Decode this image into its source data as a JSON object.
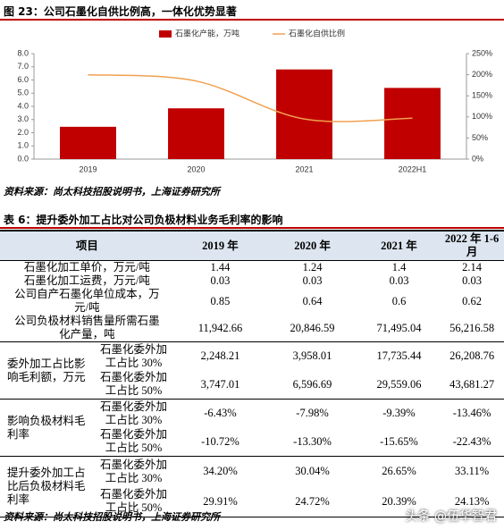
{
  "chart_data": {
    "type": "bar_line",
    "title": "图 23：公司石墨化自供比例高，一体化优势显著",
    "categories": [
      "2019",
      "2020",
      "2021",
      "2022H1"
    ],
    "series": [
      {
        "name": "石墨化产能，万吨",
        "color": "#c00000",
        "values": [
          2.45,
          3.85,
          6.8,
          5.4
        ]
      },
      {
        "name": "石墨化自供比例",
        "color": "#f0a050",
        "values": [
          200,
          185,
          95,
          97
        ],
        "axis": "y2"
      }
    ],
    "ylim": [
      0,
      8
    ],
    "yticks": [
      {
        "value": 0,
        "label": "0.0"
      },
      {
        "value": 1,
        "label": "1.0"
      },
      {
        "value": 2,
        "label": "2.0"
      },
      {
        "value": 3,
        "label": "3.0"
      },
      {
        "value": 4,
        "label": "4.0"
      },
      {
        "value": 5,
        "label": "5.0"
      },
      {
        "value": 6,
        "label": "6.0"
      },
      {
        "value": 7,
        "label": "7.0"
      },
      {
        "value": 8,
        "label": "8.0"
      }
    ],
    "y2lim": [
      0,
      250
    ],
    "y2ticks": [
      {
        "value": 0,
        "label": "0%"
      },
      {
        "value": 50,
        "label": "50%"
      },
      {
        "value": 100,
        "label": "100%"
      },
      {
        "value": 150,
        "label": "150%"
      },
      {
        "value": 200,
        "label": "200%"
      },
      {
        "value": 250,
        "label": "250%"
      }
    ],
    "source": "资料来源：尚太科技招股说明书，上海证券研究所"
  },
  "table": {
    "title": "表 6：提升委外加工占比对公司负极材料业务毛利率的影响",
    "header": [
      "项目",
      "2019 年",
      "2020 年",
      "2021 年",
      "2022 年 1-6 月"
    ],
    "rows": [
      {
        "label": "石墨化加工单价，万元/吨",
        "values": [
          "1.44",
          "1.24",
          "1.4",
          "2.14"
        ]
      },
      {
        "label": "石墨化加工运费，万元/吨",
        "values": [
          "0.03",
          "0.03",
          "0.03",
          "0.03"
        ]
      },
      {
        "label": "公司自产石墨化单位成本，万元/吨",
        "values": [
          "0.85",
          "0.64",
          "0.6",
          "0.62"
        ]
      },
      {
        "label": "公司负极材料销售量所需石墨化产量，吨",
        "values": [
          "11,942.66",
          "20,846.59",
          "71,495.04",
          "56,216.58"
        ]
      }
    ],
    "groups": [
      {
        "label": "委外加工占比影响毛利额，万元",
        "sub": [
          {
            "label": "石墨化委外加工占比 30%",
            "values": [
              "2,248.21",
              "3,958.01",
              "17,735.44",
              "26,208.76"
            ]
          },
          {
            "label": "石墨化委外加工占比 50%",
            "values": [
              "3,747.01",
              "6,596.69",
              "29,559.06",
              "43,681.27"
            ]
          }
        ]
      },
      {
        "label": "影响负极材料毛利率",
        "sub": [
          {
            "label": "石墨化委外加工占比 30%",
            "values": [
              "-6.43%",
              "-7.98%",
              "-9.39%",
              "-13.46%"
            ]
          },
          {
            "label": "石墨化委外加工占比 50%",
            "values": [
              "-10.72%",
              "-13.30%",
              "-15.65%",
              "-22.43%"
            ]
          }
        ]
      },
      {
        "label": "提升委外加工占比后负极材料毛利率",
        "sub": [
          {
            "label": "石墨化委外加工占比 30%",
            "values": [
              "34.20%",
              "30.04%",
              "26.65%",
              "33.11%"
            ]
          },
          {
            "label": "石墨化委外加工占比 50%",
            "values": [
              "29.91%",
              "24.72%",
              "20.39%",
              "24.13%"
            ]
          }
        ]
      }
    ],
    "source": "资料来源：尚太科技招股说明书，上海证券研究所"
  },
  "watermark": "头条 @伍华智君"
}
